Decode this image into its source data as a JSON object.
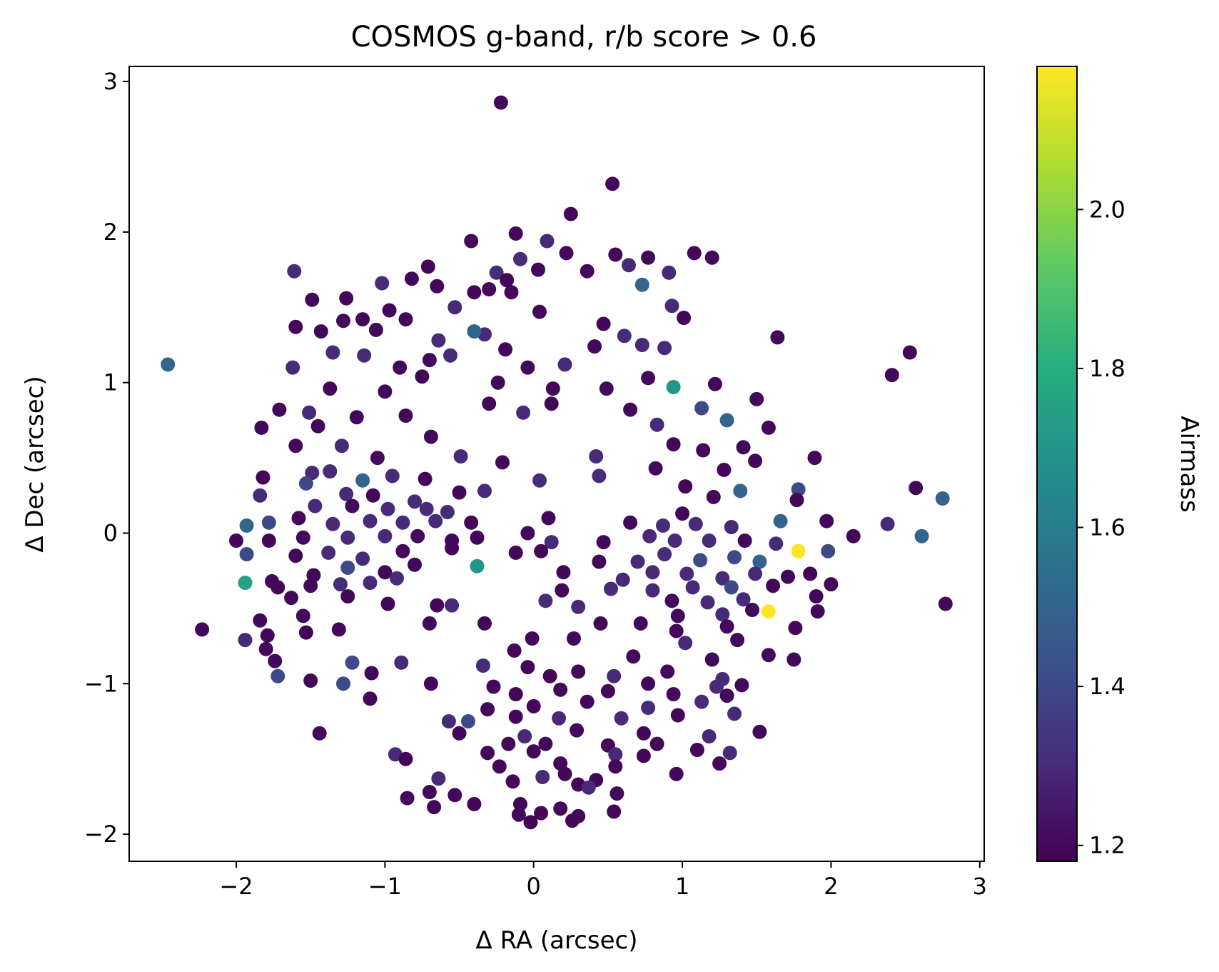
{
  "chart_data": {
    "type": "scatter",
    "title": "COSMOS g-band, r/b score > 0.6",
    "xlabel": "Δ RA (arcsec)",
    "ylabel": "Δ Dec (arcsec)",
    "xlim": [
      -2.72,
      3.03
    ],
    "ylim": [
      -2.18,
      3.1
    ],
    "x_ticks": [
      -2,
      -1,
      0,
      1,
      2,
      3
    ],
    "x_tick_labels": [
      "−2",
      "−1",
      "0",
      "1",
      "2",
      "3"
    ],
    "y_ticks": [
      -2,
      -1,
      0,
      1,
      2,
      3
    ],
    "y_tick_labels": [
      "−2",
      "−1",
      "0",
      "1",
      "2",
      "3"
    ],
    "grid": false,
    "colorbar": {
      "label": "Airmass",
      "colormap": "viridis",
      "range": [
        1.18,
        2.18
      ],
      "ticks": [
        1.2,
        1.4,
        1.6,
        1.8,
        2.0
      ],
      "tick_labels": [
        "1.2",
        "1.4",
        "1.6",
        "1.8",
        "2.0"
      ]
    },
    "points": [
      [
        -0.22,
        2.86,
        1.2
      ],
      [
        0.53,
        2.32,
        1.2
      ],
      [
        0.25,
        2.12,
        1.2
      ],
      [
        -0.12,
        1.99,
        1.2
      ],
      [
        0.09,
        1.94,
        1.3
      ],
      [
        -0.42,
        1.94,
        1.2
      ],
      [
        0.22,
        1.86,
        1.2
      ],
      [
        0.55,
        1.85,
        1.2
      ],
      [
        0.77,
        1.83,
        1.2
      ],
      [
        1.08,
        1.86,
        1.2
      ],
      [
        1.2,
        1.83,
        1.2
      ],
      [
        -0.09,
        1.82,
        1.3
      ],
      [
        0.64,
        1.78,
        1.3
      ],
      [
        -1.61,
        1.74,
        1.3
      ],
      [
        -0.71,
        1.77,
        1.2
      ],
      [
        -0.25,
        1.73,
        1.3
      ],
      [
        0.36,
        1.74,
        1.2
      ],
      [
        0.91,
        1.73,
        1.3
      ],
      [
        -0.82,
        1.69,
        1.2
      ],
      [
        -0.65,
        1.64,
        1.2
      ],
      [
        -0.18,
        1.68,
        1.2
      ],
      [
        0.03,
        1.75,
        1.2
      ],
      [
        0.73,
        1.65,
        1.5
      ],
      [
        -1.02,
        1.66,
        1.3
      ],
      [
        -0.4,
        1.6,
        1.2
      ],
      [
        -0.3,
        1.62,
        1.2
      ],
      [
        -0.15,
        1.6,
        1.2
      ],
      [
        -1.49,
        1.55,
        1.2
      ],
      [
        -1.26,
        1.56,
        1.2
      ],
      [
        -0.97,
        1.48,
        1.2
      ],
      [
        -0.53,
        1.5,
        1.3
      ],
      [
        0.04,
        1.47,
        1.2
      ],
      [
        0.93,
        1.51,
        1.3
      ],
      [
        1.01,
        1.43,
        1.2
      ],
      [
        -1.28,
        1.41,
        1.2
      ],
      [
        -1.15,
        1.42,
        1.2
      ],
      [
        -0.86,
        1.42,
        1.2
      ],
      [
        -0.33,
        1.32,
        1.3
      ],
      [
        -1.6,
        1.37,
        1.2
      ],
      [
        -1.43,
        1.34,
        1.2
      ],
      [
        -1.06,
        1.35,
        1.2
      ],
      [
        0.47,
        1.39,
        1.2
      ],
      [
        0.73,
        1.25,
        1.3
      ],
      [
        1.64,
        1.3,
        1.2
      ],
      [
        -0.64,
        1.28,
        1.3
      ],
      [
        0.61,
        1.31,
        1.3
      ],
      [
        -0.4,
        1.34,
        1.5
      ],
      [
        -1.35,
        1.2,
        1.3
      ],
      [
        -1.14,
        1.18,
        1.3
      ],
      [
        -0.7,
        1.15,
        1.2
      ],
      [
        -0.19,
        1.22,
        1.2
      ],
      [
        0.41,
        1.24,
        1.2
      ],
      [
        0.88,
        1.23,
        1.3
      ],
      [
        2.53,
        1.2,
        1.2
      ],
      [
        -2.46,
        1.12,
        1.5
      ],
      [
        -1.62,
        1.1,
        1.3
      ],
      [
        -0.9,
        1.1,
        1.2
      ],
      [
        -0.56,
        1.18,
        1.3
      ],
      [
        -0.04,
        1.1,
        1.2
      ],
      [
        0.21,
        1.12,
        1.3
      ],
      [
        0.77,
        1.03,
        1.2
      ],
      [
        1.22,
        0.99,
        1.2
      ],
      [
        2.41,
        1.05,
        1.2
      ],
      [
        -1.37,
        0.96,
        1.2
      ],
      [
        -1.0,
        0.94,
        1.2
      ],
      [
        -0.75,
        1.04,
        1.2
      ],
      [
        -0.24,
        1.0,
        1.2
      ],
      [
        0.13,
        0.96,
        1.2
      ],
      [
        0.49,
        0.96,
        1.2
      ],
      [
        0.94,
        0.97,
        1.7
      ],
      [
        -1.71,
        0.82,
        1.2
      ],
      [
        -1.51,
        0.8,
        1.3
      ],
      [
        -1.19,
        0.77,
        1.2
      ],
      [
        -0.86,
        0.78,
        1.2
      ],
      [
        -0.3,
        0.86,
        1.2
      ],
      [
        0.12,
        0.86,
        1.2
      ],
      [
        0.65,
        0.82,
        1.2
      ],
      [
        1.13,
        0.83,
        1.4
      ],
      [
        1.5,
        0.89,
        1.2
      ],
      [
        -1.83,
        0.7,
        1.2
      ],
      [
        -1.45,
        0.71,
        1.2
      ],
      [
        -0.69,
        0.64,
        1.2
      ],
      [
        -0.07,
        0.8,
        1.3
      ],
      [
        0.83,
        0.72,
        1.3
      ],
      [
        1.3,
        0.75,
        1.5
      ],
      [
        1.58,
        0.7,
        1.2
      ],
      [
        -1.6,
        0.58,
        1.2
      ],
      [
        -1.29,
        0.58,
        1.3
      ],
      [
        -1.05,
        0.5,
        1.2
      ],
      [
        -0.49,
        0.51,
        1.3
      ],
      [
        -0.21,
        0.47,
        1.2
      ],
      [
        0.42,
        0.51,
        1.3
      ],
      [
        0.94,
        0.59,
        1.2
      ],
      [
        1.14,
        0.55,
        1.2
      ],
      [
        1.41,
        0.57,
        1.2
      ],
      [
        1.89,
        0.5,
        1.2
      ],
      [
        -1.82,
        0.37,
        1.2
      ],
      [
        -1.49,
        0.4,
        1.3
      ],
      [
        -1.37,
        0.41,
        1.3
      ],
      [
        -1.15,
        0.35,
        1.5
      ],
      [
        -0.95,
        0.38,
        1.3
      ],
      [
        -0.73,
        0.36,
        1.2
      ],
      [
        -0.33,
        0.28,
        1.3
      ],
      [
        0.04,
        0.35,
        1.3
      ],
      [
        0.44,
        0.38,
        1.3
      ],
      [
        0.82,
        0.43,
        1.2
      ],
      [
        1.28,
        0.42,
        1.2
      ],
      [
        1.49,
        0.48,
        1.2
      ],
      [
        -1.53,
        0.33,
        1.4
      ],
      [
        -1.26,
        0.26,
        1.3
      ],
      [
        -1.08,
        0.25,
        1.2
      ],
      [
        -0.8,
        0.21,
        1.3
      ],
      [
        -0.5,
        0.27,
        1.2
      ],
      [
        1.02,
        0.31,
        1.2
      ],
      [
        1.21,
        0.24,
        1.2
      ],
      [
        1.39,
        0.28,
        1.5
      ],
      [
        1.78,
        0.29,
        1.4
      ],
      [
        2.57,
        0.3,
        1.2
      ],
      [
        2.75,
        0.23,
        1.5
      ],
      [
        -1.84,
        0.25,
        1.3
      ],
      [
        -1.47,
        0.18,
        1.3
      ],
      [
        -1.22,
        0.18,
        1.2
      ],
      [
        -0.98,
        0.16,
        1.3
      ],
      [
        -0.72,
        0.16,
        1.3
      ],
      [
        -0.58,
        0.14,
        1.3
      ],
      [
        1.0,
        0.13,
        1.2
      ],
      [
        1.77,
        0.22,
        1.2
      ],
      [
        -1.93,
        0.05,
        1.5
      ],
      [
        -1.78,
        0.07,
        1.4
      ],
      [
        -1.58,
        0.1,
        1.2
      ],
      [
        -1.35,
        0.06,
        1.3
      ],
      [
        -1.1,
        0.08,
        1.3
      ],
      [
        -0.88,
        0.07,
        1.3
      ],
      [
        -0.66,
        0.08,
        1.3
      ],
      [
        -0.42,
        0.07,
        1.2
      ],
      [
        0.1,
        0.1,
        1.2
      ],
      [
        0.65,
        0.07,
        1.2
      ],
      [
        0.87,
        0.05,
        1.3
      ],
      [
        1.09,
        0.06,
        1.3
      ],
      [
        1.33,
        0.04,
        1.3
      ],
      [
        1.66,
        0.08,
        1.5
      ],
      [
        1.97,
        0.08,
        1.2
      ],
      [
        2.38,
        0.06,
        1.3
      ],
      [
        -2.0,
        -0.05,
        1.2
      ],
      [
        -1.78,
        -0.05,
        1.2
      ],
      [
        -1.55,
        -0.03,
        1.2
      ],
      [
        -1.25,
        -0.03,
        1.3
      ],
      [
        -1.0,
        -0.02,
        1.3
      ],
      [
        -0.78,
        -0.02,
        1.2
      ],
      [
        -0.55,
        -0.05,
        1.2
      ],
      [
        -0.38,
        -0.03,
        1.2
      ],
      [
        -0.04,
        -0.0,
        1.2
      ],
      [
        0.12,
        -0.06,
        1.3
      ],
      [
        0.47,
        -0.06,
        1.2
      ],
      [
        0.78,
        -0.02,
        1.3
      ],
      [
        0.95,
        -0.05,
        1.3
      ],
      [
        1.18,
        -0.05,
        1.3
      ],
      [
        1.42,
        -0.05,
        1.2
      ],
      [
        1.63,
        -0.07,
        1.3
      ],
      [
        2.15,
        -0.02,
        1.2
      ],
      [
        2.61,
        -0.02,
        1.5
      ],
      [
        -1.93,
        -0.14,
        1.4
      ],
      [
        -1.6,
        -0.15,
        1.2
      ],
      [
        -1.38,
        -0.13,
        1.3
      ],
      [
        -1.15,
        -0.17,
        1.3
      ],
      [
        -0.88,
        -0.12,
        1.2
      ],
      [
        -0.55,
        -0.1,
        1.2
      ],
      [
        -0.12,
        -0.13,
        1.2
      ],
      [
        0.05,
        -0.12,
        1.2
      ],
      [
        0.44,
        -0.19,
        1.2
      ],
      [
        0.7,
        -0.19,
        1.3
      ],
      [
        0.88,
        -0.14,
        1.3
      ],
      [
        1.12,
        -0.18,
        1.4
      ],
      [
        1.35,
        -0.16,
        1.4
      ],
      [
        1.52,
        -0.19,
        1.5
      ],
      [
        1.78,
        -0.12,
        2.18
      ],
      [
        1.98,
        -0.12,
        1.4
      ],
      [
        -1.94,
        -0.33,
        1.75
      ],
      [
        -1.76,
        -0.32,
        1.2
      ],
      [
        -1.48,
        -0.28,
        1.2
      ],
      [
        -1.25,
        -0.23,
        1.4
      ],
      [
        -1.0,
        -0.26,
        1.2
      ],
      [
        -0.8,
        -0.21,
        1.2
      ],
      [
        -0.38,
        -0.22,
        1.7
      ],
      [
        0.2,
        -0.26,
        1.2
      ],
      [
        0.6,
        -0.31,
        1.3
      ],
      [
        0.8,
        -0.26,
        1.3
      ],
      [
        1.03,
        -0.27,
        1.3
      ],
      [
        1.27,
        -0.3,
        1.3
      ],
      [
        1.49,
        -0.27,
        1.3
      ],
      [
        1.71,
        -0.29,
        1.2
      ],
      [
        1.86,
        -0.27,
        1.2
      ],
      [
        -1.72,
        -0.36,
        1.2
      ],
      [
        -1.5,
        -0.35,
        1.2
      ],
      [
        -1.3,
        -0.34,
        1.3
      ],
      [
        -1.1,
        -0.33,
        1.3
      ],
      [
        -0.92,
        -0.3,
        1.3
      ],
      [
        0.19,
        -0.38,
        1.2
      ],
      [
        0.52,
        -0.37,
        1.3
      ],
      [
        0.8,
        -0.38,
        1.3
      ],
      [
        1.07,
        -0.36,
        1.3
      ],
      [
        1.33,
        -0.36,
        1.4
      ],
      [
        1.61,
        -0.35,
        1.2
      ],
      [
        2.0,
        -0.34,
        1.2
      ],
      [
        -1.63,
        -0.43,
        1.2
      ],
      [
        -1.25,
        -0.42,
        1.2
      ],
      [
        -0.98,
        -0.47,
        1.2
      ],
      [
        0.08,
        -0.45,
        1.3
      ],
      [
        0.93,
        -0.45,
        1.2
      ],
      [
        1.17,
        -0.46,
        1.3
      ],
      [
        1.41,
        -0.44,
        1.3
      ],
      [
        1.58,
        -0.52,
        2.18
      ],
      [
        1.9,
        -0.42,
        1.2
      ],
      [
        2.77,
        -0.47,
        1.2
      ],
      [
        -1.55,
        -0.55,
        1.2
      ],
      [
        -0.65,
        -0.48,
        1.2
      ],
      [
        -0.55,
        -0.48,
        1.3
      ],
      [
        0.3,
        -0.49,
        1.3
      ],
      [
        0.97,
        -0.55,
        1.2
      ],
      [
        1.27,
        -0.54,
        1.3
      ],
      [
        1.47,
        -0.51,
        1.2
      ],
      [
        1.91,
        -0.52,
        1.2
      ],
      [
        -2.23,
        -0.64,
        1.2
      ],
      [
        -1.84,
        -0.58,
        1.2
      ],
      [
        -1.53,
        -0.66,
        1.2
      ],
      [
        -1.31,
        -0.64,
        1.2
      ],
      [
        -0.7,
        -0.6,
        1.2
      ],
      [
        -0.33,
        -0.6,
        1.2
      ],
      [
        0.45,
        -0.6,
        1.2
      ],
      [
        0.72,
        -0.6,
        1.2
      ],
      [
        0.96,
        -0.65,
        1.2
      ],
      [
        1.3,
        -0.62,
        1.2
      ],
      [
        1.76,
        -0.63,
        1.2
      ],
      [
        -1.94,
        -0.71,
        1.3
      ],
      [
        -1.79,
        -0.68,
        1.2
      ],
      [
        -0.01,
        -0.7,
        1.2
      ],
      [
        0.27,
        -0.7,
        1.2
      ],
      [
        1.02,
        -0.73,
        1.3
      ],
      [
        1.37,
        -0.71,
        1.2
      ],
      [
        -1.8,
        -0.77,
        1.2
      ],
      [
        -1.74,
        -0.85,
        1.2
      ],
      [
        -0.13,
        -0.78,
        1.2
      ],
      [
        0.67,
        -0.82,
        1.2
      ],
      [
        1.2,
        -0.84,
        1.2
      ],
      [
        1.58,
        -0.81,
        1.2
      ],
      [
        1.75,
        -0.84,
        1.2
      ],
      [
        -1.22,
        -0.86,
        1.4
      ],
      [
        -0.89,
        -0.86,
        1.3
      ],
      [
        -0.34,
        -0.88,
        1.3
      ],
      [
        -0.04,
        -0.89,
        1.2
      ],
      [
        0.3,
        -0.92,
        1.2
      ],
      [
        0.9,
        -0.92,
        1.2
      ],
      [
        1.27,
        -0.97,
        1.3
      ],
      [
        -1.72,
        -0.95,
        1.4
      ],
      [
        -1.5,
        -0.98,
        1.2
      ],
      [
        -1.28,
        -1.0,
        1.4
      ],
      [
        -1.09,
        -0.93,
        1.2
      ],
      [
        -0.69,
        -1.0,
        1.2
      ],
      [
        -0.27,
        -1.02,
        1.2
      ],
      [
        0.11,
        -0.95,
        1.2
      ],
      [
        0.54,
        -0.95,
        1.3
      ],
      [
        0.77,
        -1.0,
        1.2
      ],
      [
        1.23,
        -1.02,
        1.3
      ],
      [
        1.4,
        -1.01,
        1.2
      ],
      [
        -1.1,
        -1.1,
        1.2
      ],
      [
        -0.12,
        -1.07,
        1.2
      ],
      [
        0.18,
        -1.04,
        1.2
      ],
      [
        0.5,
        -1.05,
        1.2
      ],
      [
        0.94,
        -1.07,
        1.2
      ],
      [
        1.3,
        -1.08,
        1.2
      ],
      [
        -0.31,
        -1.17,
        1.2
      ],
      [
        0.0,
        -1.15,
        1.2
      ],
      [
        0.36,
        -1.12,
        1.2
      ],
      [
        0.77,
        -1.16,
        1.3
      ],
      [
        1.13,
        -1.12,
        1.3
      ],
      [
        -0.57,
        -1.25,
        1.3
      ],
      [
        -0.44,
        -1.25,
        1.4
      ],
      [
        -0.12,
        -1.22,
        1.2
      ],
      [
        0.17,
        -1.23,
        1.3
      ],
      [
        0.59,
        -1.23,
        1.3
      ],
      [
        0.97,
        -1.21,
        1.2
      ],
      [
        1.35,
        -1.2,
        1.3
      ],
      [
        -0.5,
        -1.33,
        1.2
      ],
      [
        -0.06,
        -1.35,
        1.3
      ],
      [
        0.29,
        -1.31,
        1.2
      ],
      [
        0.74,
        -1.33,
        1.2
      ],
      [
        1.18,
        -1.35,
        1.3
      ],
      [
        1.52,
        -1.32,
        1.2
      ],
      [
        -1.44,
        -1.33,
        1.2
      ],
      [
        -0.17,
        -1.4,
        1.2
      ],
      [
        0.08,
        -1.4,
        1.2
      ],
      [
        0.5,
        -1.41,
        1.2
      ],
      [
        0.83,
        -1.4,
        1.2
      ],
      [
        1.1,
        -1.44,
        1.2
      ],
      [
        -0.93,
        -1.47,
        1.3
      ],
      [
        -0.31,
        -1.46,
        1.2
      ],
      [
        0.0,
        -1.45,
        1.2
      ],
      [
        0.55,
        -1.47,
        1.3
      ],
      [
        0.74,
        -1.48,
        1.2
      ],
      [
        1.32,
        -1.46,
        1.3
      ],
      [
        -0.86,
        -1.5,
        1.2
      ],
      [
        -0.23,
        -1.55,
        1.2
      ],
      [
        0.18,
        -1.53,
        1.2
      ],
      [
        0.55,
        -1.55,
        1.2
      ],
      [
        1.25,
        -1.53,
        1.2
      ],
      [
        0.21,
        -1.6,
        1.2
      ],
      [
        0.42,
        -1.64,
        1.2
      ],
      [
        0.96,
        -1.6,
        1.2
      ],
      [
        -0.64,
        -1.63,
        1.3
      ],
      [
        -0.14,
        -1.65,
        1.2
      ],
      [
        0.06,
        -1.62,
        1.3
      ],
      [
        0.3,
        -1.67,
        1.2
      ],
      [
        -0.85,
        -1.76,
        1.2
      ],
      [
        -0.7,
        -1.72,
        1.2
      ],
      [
        -0.53,
        -1.74,
        1.2
      ],
      [
        0.37,
        -1.69,
        1.3
      ],
      [
        0.56,
        -1.73,
        1.2
      ],
      [
        -0.67,
        -1.82,
        1.2
      ],
      [
        -0.4,
        -1.8,
        1.2
      ],
      [
        -0.09,
        -1.8,
        1.2
      ],
      [
        0.18,
        -1.83,
        1.2
      ],
      [
        0.54,
        -1.85,
        1.2
      ],
      [
        -0.1,
        -1.87,
        1.2
      ],
      [
        0.05,
        -1.86,
        1.2
      ],
      [
        0.3,
        -1.88,
        1.2
      ],
      [
        -0.02,
        -1.92,
        1.2
      ],
      [
        0.26,
        -1.91,
        1.2
      ]
    ]
  }
}
